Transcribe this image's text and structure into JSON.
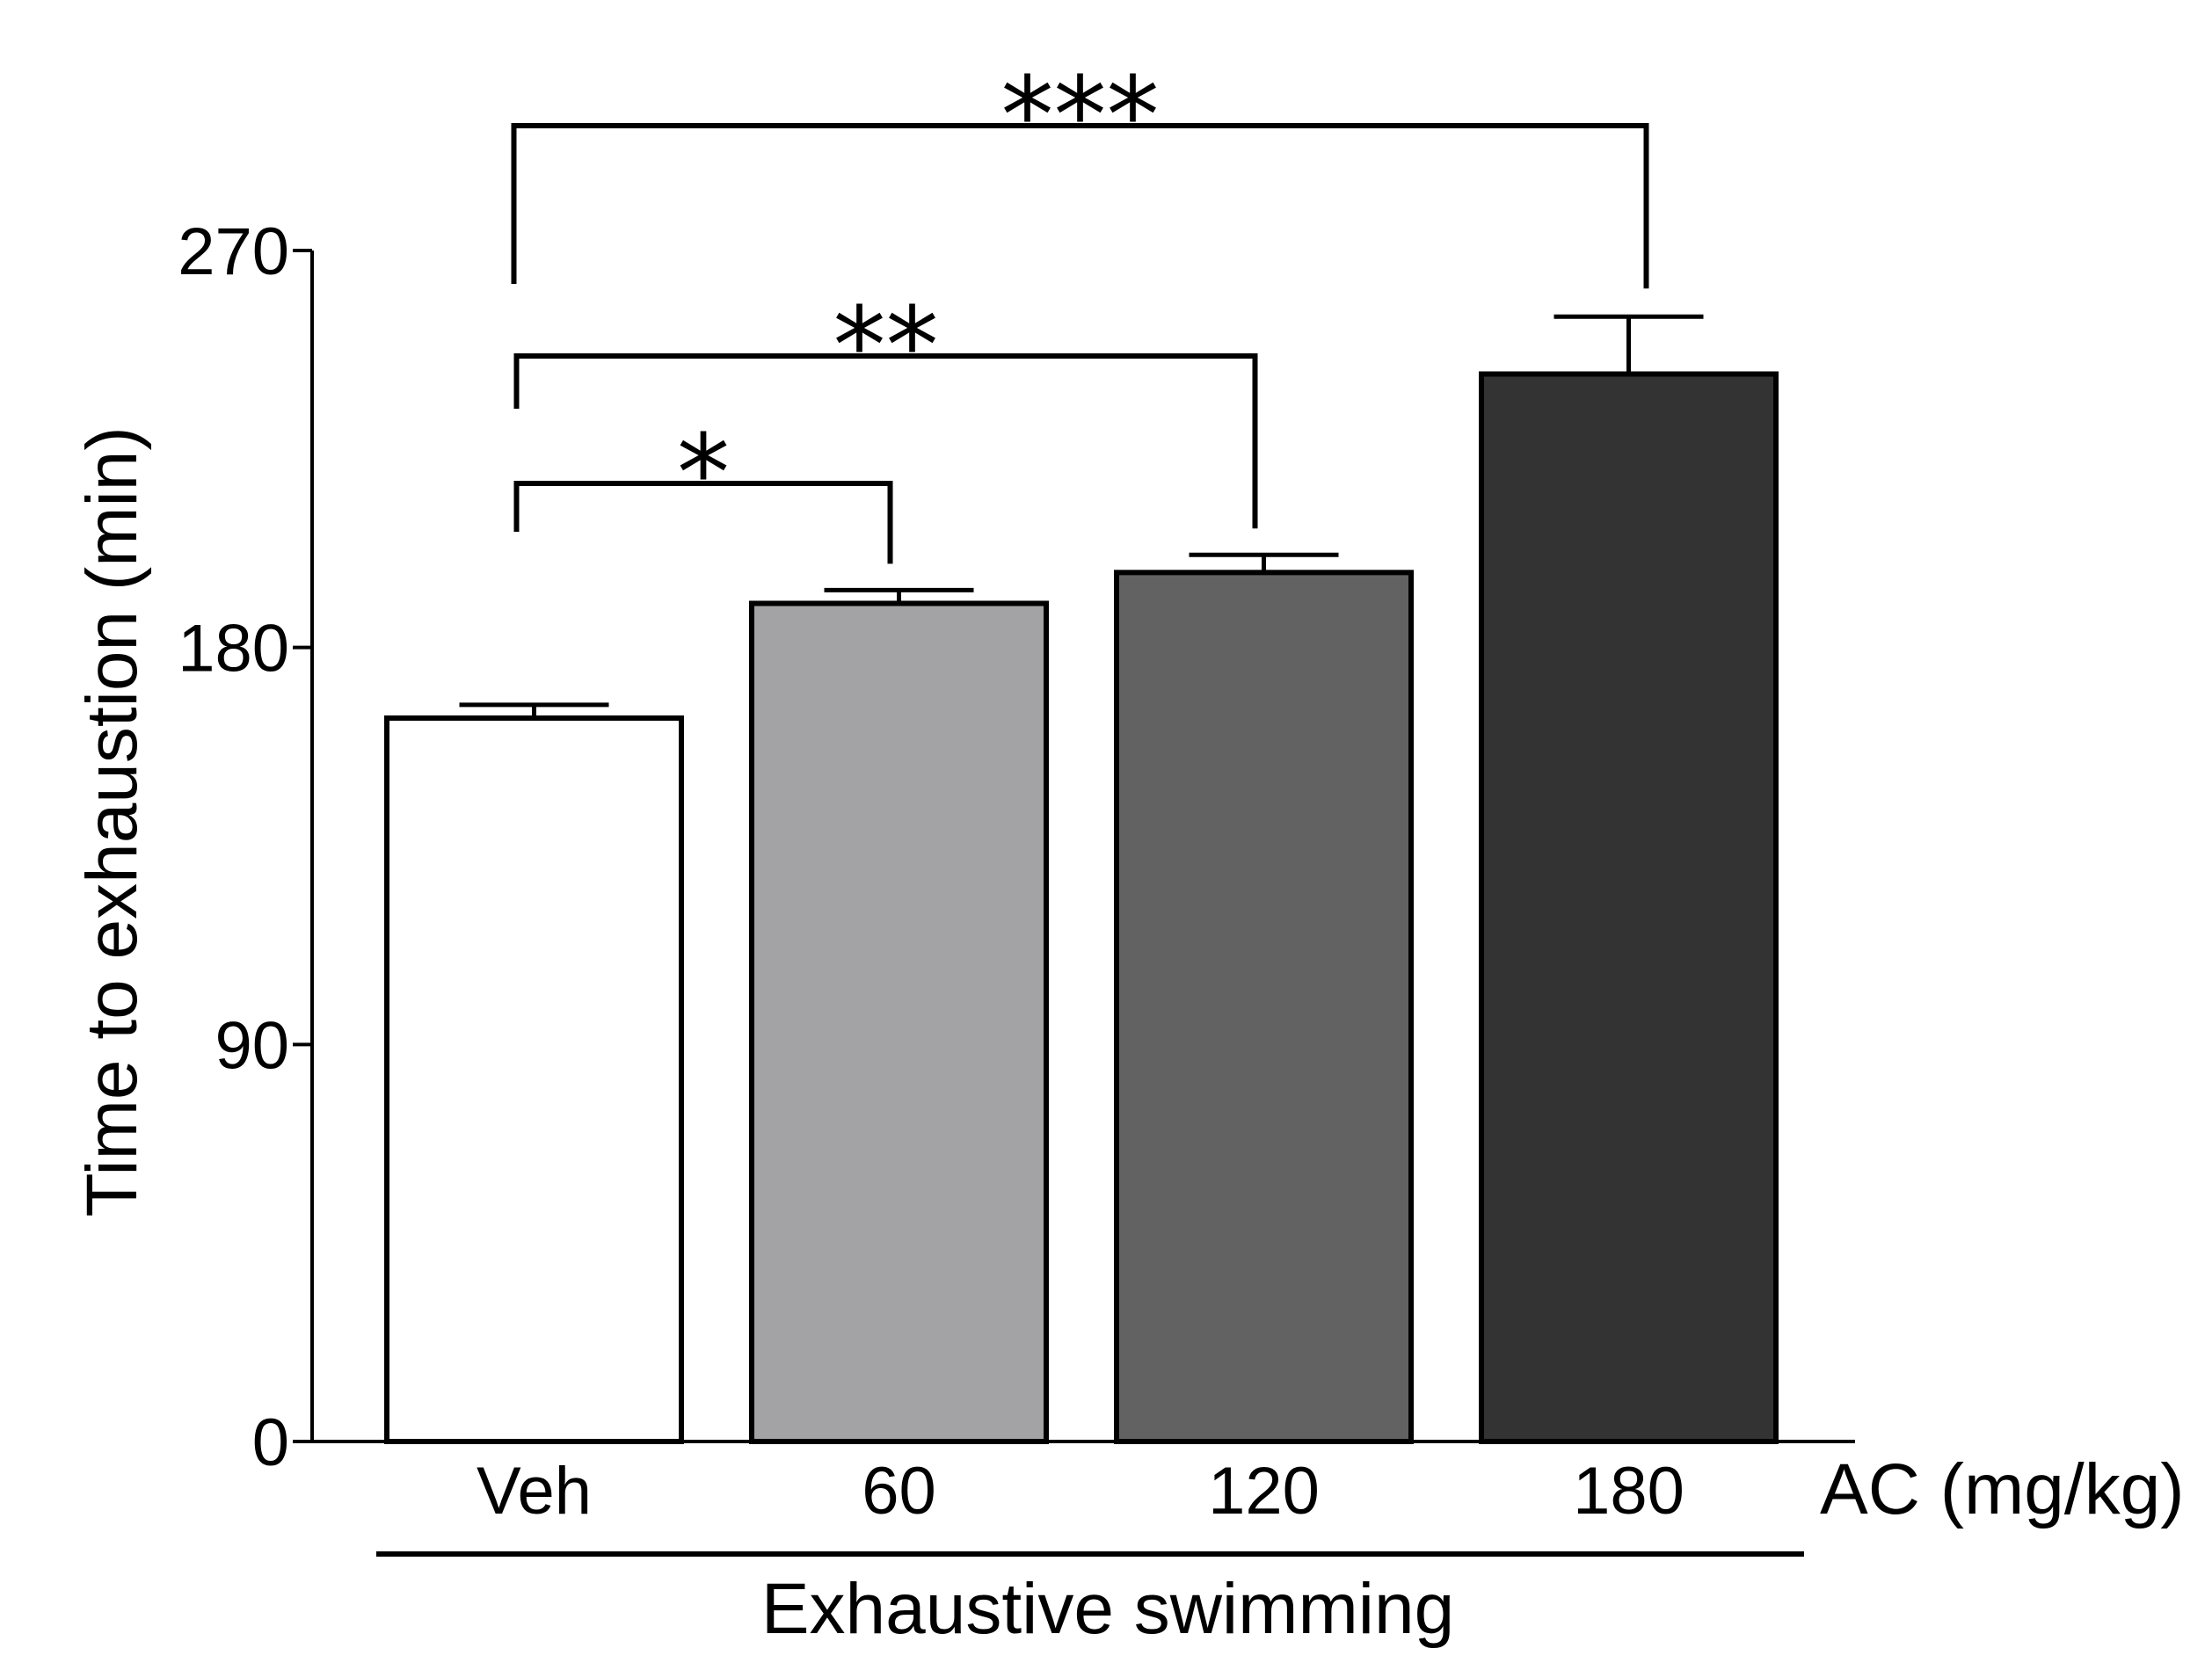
{
  "chart_data": {
    "type": "bar",
    "title": "",
    "ylabel": "Time to exhaustion (min)",
    "xlabel": "Exhaustive swimming",
    "x_unit_label": "AC (mg/kg)",
    "categories": [
      "Veh",
      "60",
      "120",
      "180"
    ],
    "values": [
      164,
      190,
      197,
      242
    ],
    "errors": [
      3,
      3,
      4,
      13
    ],
    "colors": [
      "#ffffff",
      "#a3a3a6",
      "#626262",
      "#333333"
    ],
    "ylim": [
      0,
      270
    ],
    "yticks": [
      0,
      90,
      180,
      270
    ],
    "ytick_labels": [
      "0",
      "90",
      "180",
      "270"
    ],
    "significance": [
      {
        "from": 0,
        "to": 1,
        "label": "*"
      },
      {
        "from": 0,
        "to": 2,
        "label": "**"
      },
      {
        "from": 0,
        "to": 3,
        "label": "***"
      }
    ],
    "grid": false
  }
}
